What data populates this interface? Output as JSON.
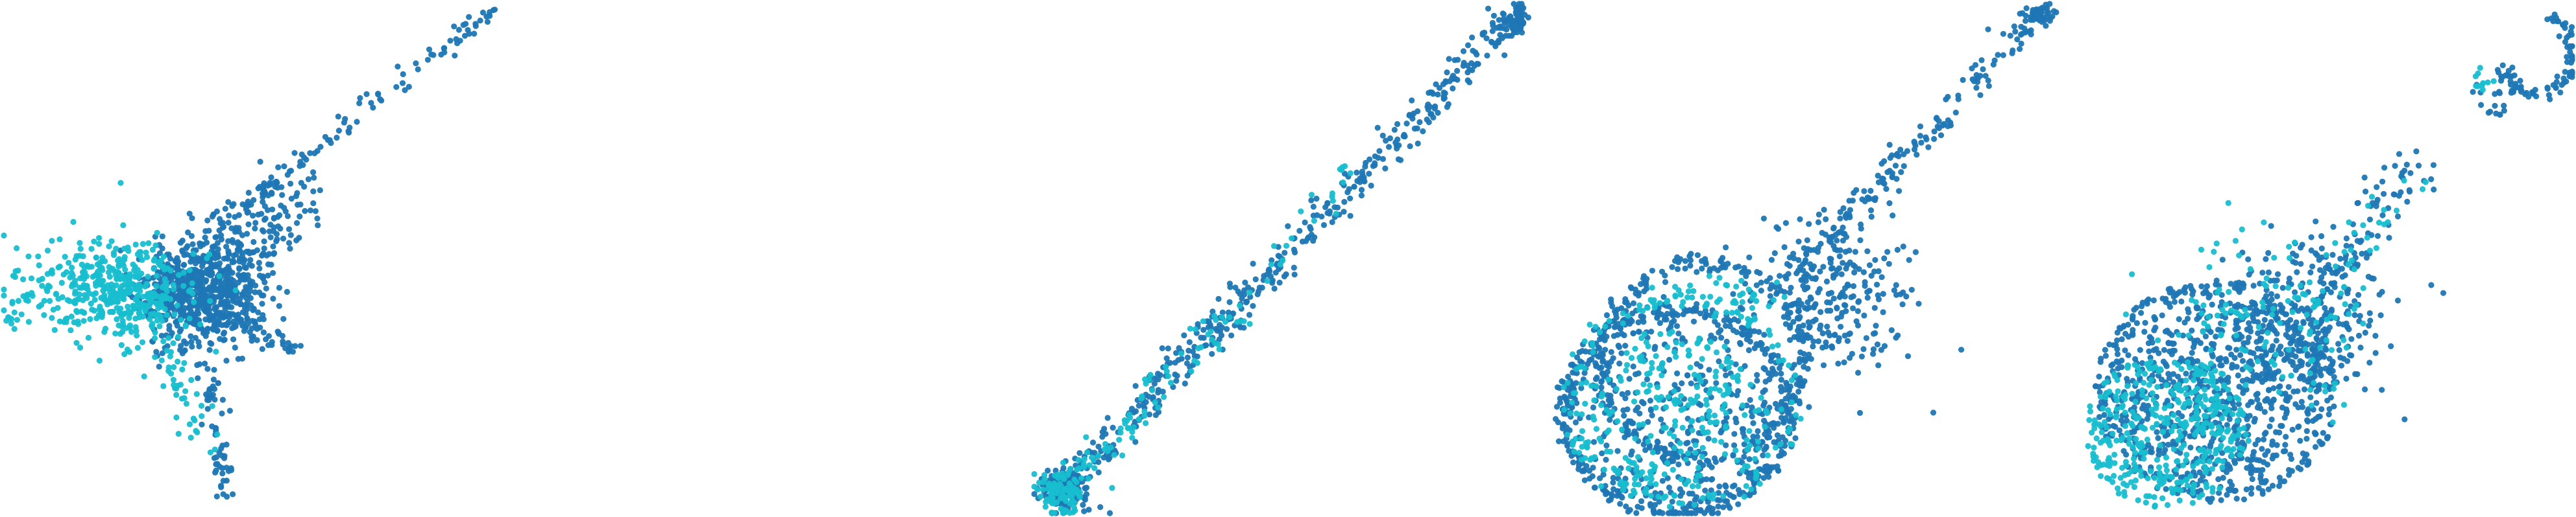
{
  "colors": {
    "series_a": "#1f77b4",
    "series_b": "#17becf",
    "background": "#ffffff"
  },
  "chart_data": [
    {
      "type": "scatter",
      "panel": 1,
      "title": "",
      "xlabel": "",
      "ylabel": "",
      "axes_visible": false,
      "grid": false,
      "legend": "none",
      "xlim": [
        0,
        100
      ],
      "ylim": [
        0,
        100
      ],
      "series": [
        {
          "color": "#1f77b4",
          "clusters": [
            {
              "shape": "blob",
              "center": [
                39,
                43
              ],
              "spread": [
                6,
                5
              ],
              "count": 650,
              "seed": 11
            },
            {
              "shape": "line",
              "from": [
                32,
                48
              ],
              "to": [
                96,
                99
              ],
              "jitter": 1.1,
              "count": 140,
              "seed": 12
            },
            {
              "shape": "line",
              "from": [
                40,
                46
              ],
              "to": [
                58,
                63
              ],
              "jitter": 3.5,
              "count": 160,
              "seed": 13
            },
            {
              "shape": "line",
              "from": [
                42,
                38
              ],
              "to": [
                58,
                33
              ],
              "jitter": 1.2,
              "count": 40,
              "seed": 14
            },
            {
              "shape": "line",
              "from": [
                40,
                30
              ],
              "to": [
                44,
                1
              ],
              "jitter": 1.0,
              "count": 60,
              "seed": 15
            }
          ]
        },
        {
          "color": "#17becf",
          "clusters": [
            {
              "shape": "blob",
              "center": [
                22,
                44
              ],
              "spread": [
                8,
                5
              ],
              "count": 420,
              "seed": 21
            },
            {
              "shape": "line",
              "from": [
                28,
                40
              ],
              "to": [
                40,
                14
              ],
              "jitter": 2.0,
              "count": 60,
              "seed": 22
            },
            {
              "shape": "line",
              "from": [
                6,
                50
              ],
              "to": [
                0,
                38
              ],
              "jitter": 2.0,
              "count": 25,
              "seed": 23
            }
          ]
        }
      ]
    },
    {
      "type": "scatter",
      "panel": 2,
      "title": "",
      "xlabel": "",
      "ylabel": "",
      "axes_visible": false,
      "grid": false,
      "legend": "none",
      "xlim": [
        0,
        100
      ],
      "ylim": [
        0,
        100
      ],
      "series": [],
      "points": []
    },
    {
      "type": "scatter",
      "panel": 3,
      "title": "",
      "xlabel": "",
      "ylabel": "",
      "axes_visible": false,
      "grid": false,
      "legend": "none",
      "xlim": [
        0,
        100
      ],
      "ylim": [
        0,
        100
      ],
      "series": [
        {
          "color": "#1f77b4",
          "clusters": [
            {
              "shape": "line",
              "from": [
                4,
                3
              ],
              "to": [
                94,
                97
              ],
              "jitter": 1.8,
              "count": 420,
              "seed": 31
            },
            {
              "shape": "blob",
              "center": [
                6,
                5
              ],
              "spread": [
                2.4,
                2.2
              ],
              "count": 120,
              "seed": 32
            },
            {
              "shape": "blob",
              "center": [
                95,
                97
              ],
              "spread": [
                1.2,
                1.4
              ],
              "count": 70,
              "seed": 33
            }
          ]
        },
        {
          "color": "#17becf",
          "clusters": [
            {
              "shape": "line",
              "from": [
                3,
                2
              ],
              "to": [
                40,
                40
              ],
              "jitter": 2.0,
              "count": 90,
              "seed": 34
            },
            {
              "shape": "blob",
              "center": [
                5,
                4
              ],
              "spread": [
                2.2,
                2.0
              ],
              "count": 80,
              "seed": 35
            },
            {
              "shape": "line",
              "from": [
                44,
                45
              ],
              "to": [
                62,
                68
              ],
              "jitter": 1.5,
              "count": 20,
              "seed": 36
            }
          ]
        }
      ]
    },
    {
      "type": "scatter",
      "panel": 4,
      "title": "",
      "xlabel": "",
      "ylabel": "",
      "axes_visible": false,
      "grid": false,
      "legend": "none",
      "xlim": [
        0,
        100
      ],
      "ylim": [
        0,
        100
      ],
      "series": [
        {
          "color": "#1f77b4",
          "clusters": [
            {
              "shape": "ring",
              "center": [
                25,
                20
              ],
              "radius": [
                22,
                20
              ],
              "jitter": 1.0,
              "count": 420,
              "seed": 41
            },
            {
              "shape": "ring",
              "center": [
                30,
                30
              ],
              "radius": [
                20,
                19
              ],
              "jitter": 1.0,
              "count": 260,
              "seed": 42
            },
            {
              "shape": "disc",
              "center": [
                25,
                20
              ],
              "radius": [
                20,
                18
              ],
              "count": 320,
              "seed": 43
            },
            {
              "shape": "blob",
              "center": [
                55,
                42
              ],
              "spread": [
                8,
                7
              ],
              "count": 260,
              "seed": 44
            },
            {
              "shape": "line",
              "from": [
                48,
                46
              ],
              "to": [
                96,
                98
              ],
              "jitter": 1.6,
              "count": 160,
              "seed": 45
            },
            {
              "shape": "blob",
              "center": [
                97,
                98
              ],
              "spread": [
                1.4,
                1.0
              ],
              "count": 50,
              "seed": 46
            }
          ]
        },
        {
          "color": "#17becf",
          "clusters": [
            {
              "shape": "disc",
              "center": [
                24,
                19
              ],
              "radius": [
                19,
                17
              ],
              "count": 240,
              "seed": 47
            },
            {
              "shape": "ring",
              "center": [
                26,
                22
              ],
              "radius": [
                22,
                20
              ],
              "jitter": 1.0,
              "count": 120,
              "seed": 48
            },
            {
              "shape": "blob",
              "center": [
                35,
                42
              ],
              "spread": [
                6,
                3
              ],
              "count": 40,
              "seed": 49
            }
          ]
        }
      ]
    },
    {
      "type": "scatter",
      "panel": 5,
      "title": "",
      "xlabel": "",
      "ylabel": "",
      "axes_visible": false,
      "grid": false,
      "legend": "none",
      "xlim": [
        0,
        100
      ],
      "ylim": [
        0,
        100
      ],
      "series": [
        {
          "color": "#1f77b4",
          "clusters": [
            {
              "shape": "disc",
              "center": [
                30,
                24
              ],
              "radius": [
                24,
                22
              ],
              "count": 900,
              "seed": 51
            },
            {
              "shape": "blob",
              "center": [
                48,
                38
              ],
              "spread": [
                8,
                8
              ],
              "count": 260,
              "seed": 52
            },
            {
              "shape": "line",
              "from": [
                50,
                45
              ],
              "to": [
                70,
                70
              ],
              "jitter": 2.5,
              "count": 90,
              "seed": 53
            },
            {
              "shape": "arc",
              "center": [
                93,
                90
              ],
              "radius": [
                7,
                8
              ],
              "start": 200,
              "end": 430,
              "jitter": 0.8,
              "count": 90,
              "seed": 54
            },
            {
              "shape": "blob",
              "center": [
                83,
                80
              ],
              "spread": [
                2.0,
                2.0
              ],
              "count": 15,
              "seed": 55
            }
          ]
        },
        {
          "color": "#17becf",
          "clusters": [
            {
              "shape": "disc",
              "center": [
                20,
                16
              ],
              "radius": [
                16,
                15
              ],
              "count": 380,
              "seed": 56
            },
            {
              "shape": "blob",
              "center": [
                40,
                36
              ],
              "spread": [
                10,
                9
              ],
              "count": 140,
              "seed": 57
            },
            {
              "shape": "line",
              "from": [
                52,
                50
              ],
              "to": [
                70,
                66
              ],
              "jitter": 2.0,
              "count": 20,
              "seed": 58
            },
            {
              "shape": "blob",
              "center": [
                83,
                85
              ],
              "spread": [
                1.5,
                1.5
              ],
              "count": 10,
              "seed": 59
            }
          ]
        }
      ]
    }
  ]
}
